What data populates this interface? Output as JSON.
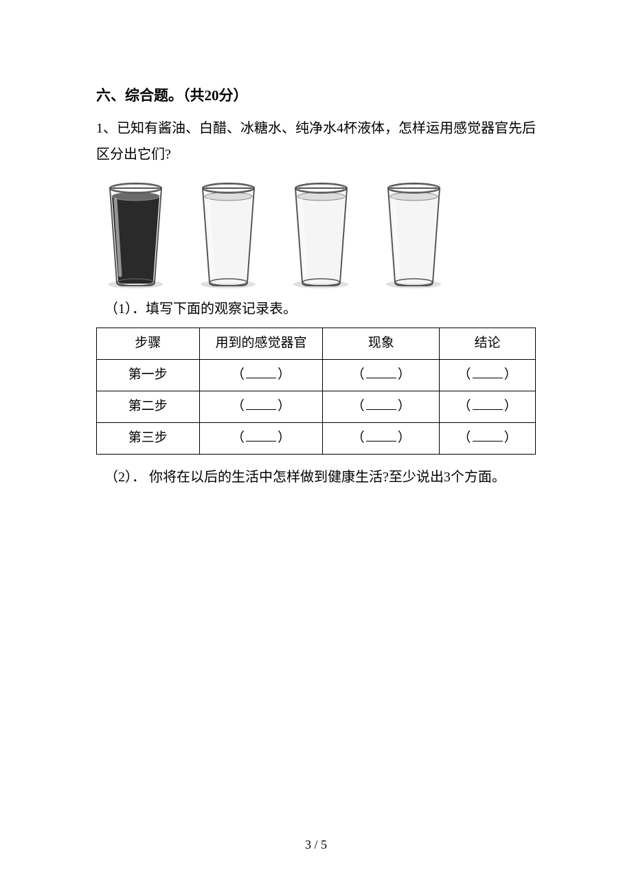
{
  "section": {
    "title": "六、综合题。（共20分）"
  },
  "question": {
    "intro": "1、已知有酱油、白醋、冰糖水、纯净水4杯液体，怎样运用感觉器官先后区分出它们?"
  },
  "glasses": [
    {
      "liquid_color": "#2a2a2a",
      "liquid_top": "#6a6a6a"
    },
    {
      "liquid_color": "#f5f5f5",
      "liquid_top": "#dddddd"
    },
    {
      "liquid_color": "#f5f5f5",
      "liquid_top": "#dddddd"
    },
    {
      "liquid_color": "#f5f5f5",
      "liquid_top": "#dddddd"
    }
  ],
  "sub1": {
    "label": "（1）．填写下面的观察记录表。"
  },
  "table": {
    "headers": [
      "步骤",
      "用到的感觉器官",
      "现象",
      "结论"
    ],
    "rows": [
      "第一步",
      "第二步",
      "第三步"
    ]
  },
  "sub2": {
    "label": "（2）． 你将在以后的生活中怎样做到健康生活?至少说出3个方面。"
  },
  "page_number": "3 / 5",
  "colors": {
    "glass_outline": "#555555",
    "glass_rim": "#888888",
    "shadow": "#cccccc"
  }
}
